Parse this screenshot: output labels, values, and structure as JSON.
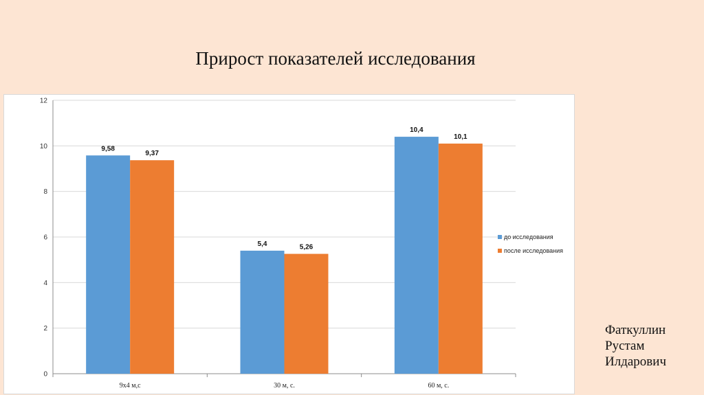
{
  "slide": {
    "title": "Прирост показателей исследования",
    "author_lines": [
      "Фаткуллин",
      "Рустам",
      "Илдарович"
    ]
  },
  "chart_data": {
    "type": "bar",
    "categories": [
      "9х4 м,с",
      "30 м, с.",
      "60 м, с."
    ],
    "series": [
      {
        "name": "до исследования",
        "values": [
          9.58,
          5.4,
          10.4
        ],
        "labels": [
          "9,58",
          "5,4",
          "10,4"
        ],
        "color": "#5b9bd5"
      },
      {
        "name": "после исследования",
        "values": [
          9.37,
          5.26,
          10.1
        ],
        "labels": [
          "9,37",
          "5,26",
          "10,1"
        ],
        "color": "#ed7d31"
      }
    ],
    "ylim": [
      0,
      12
    ],
    "yticks": [
      0,
      2,
      4,
      6,
      8,
      10,
      12
    ],
    "grid": true,
    "legend_position": "right"
  }
}
